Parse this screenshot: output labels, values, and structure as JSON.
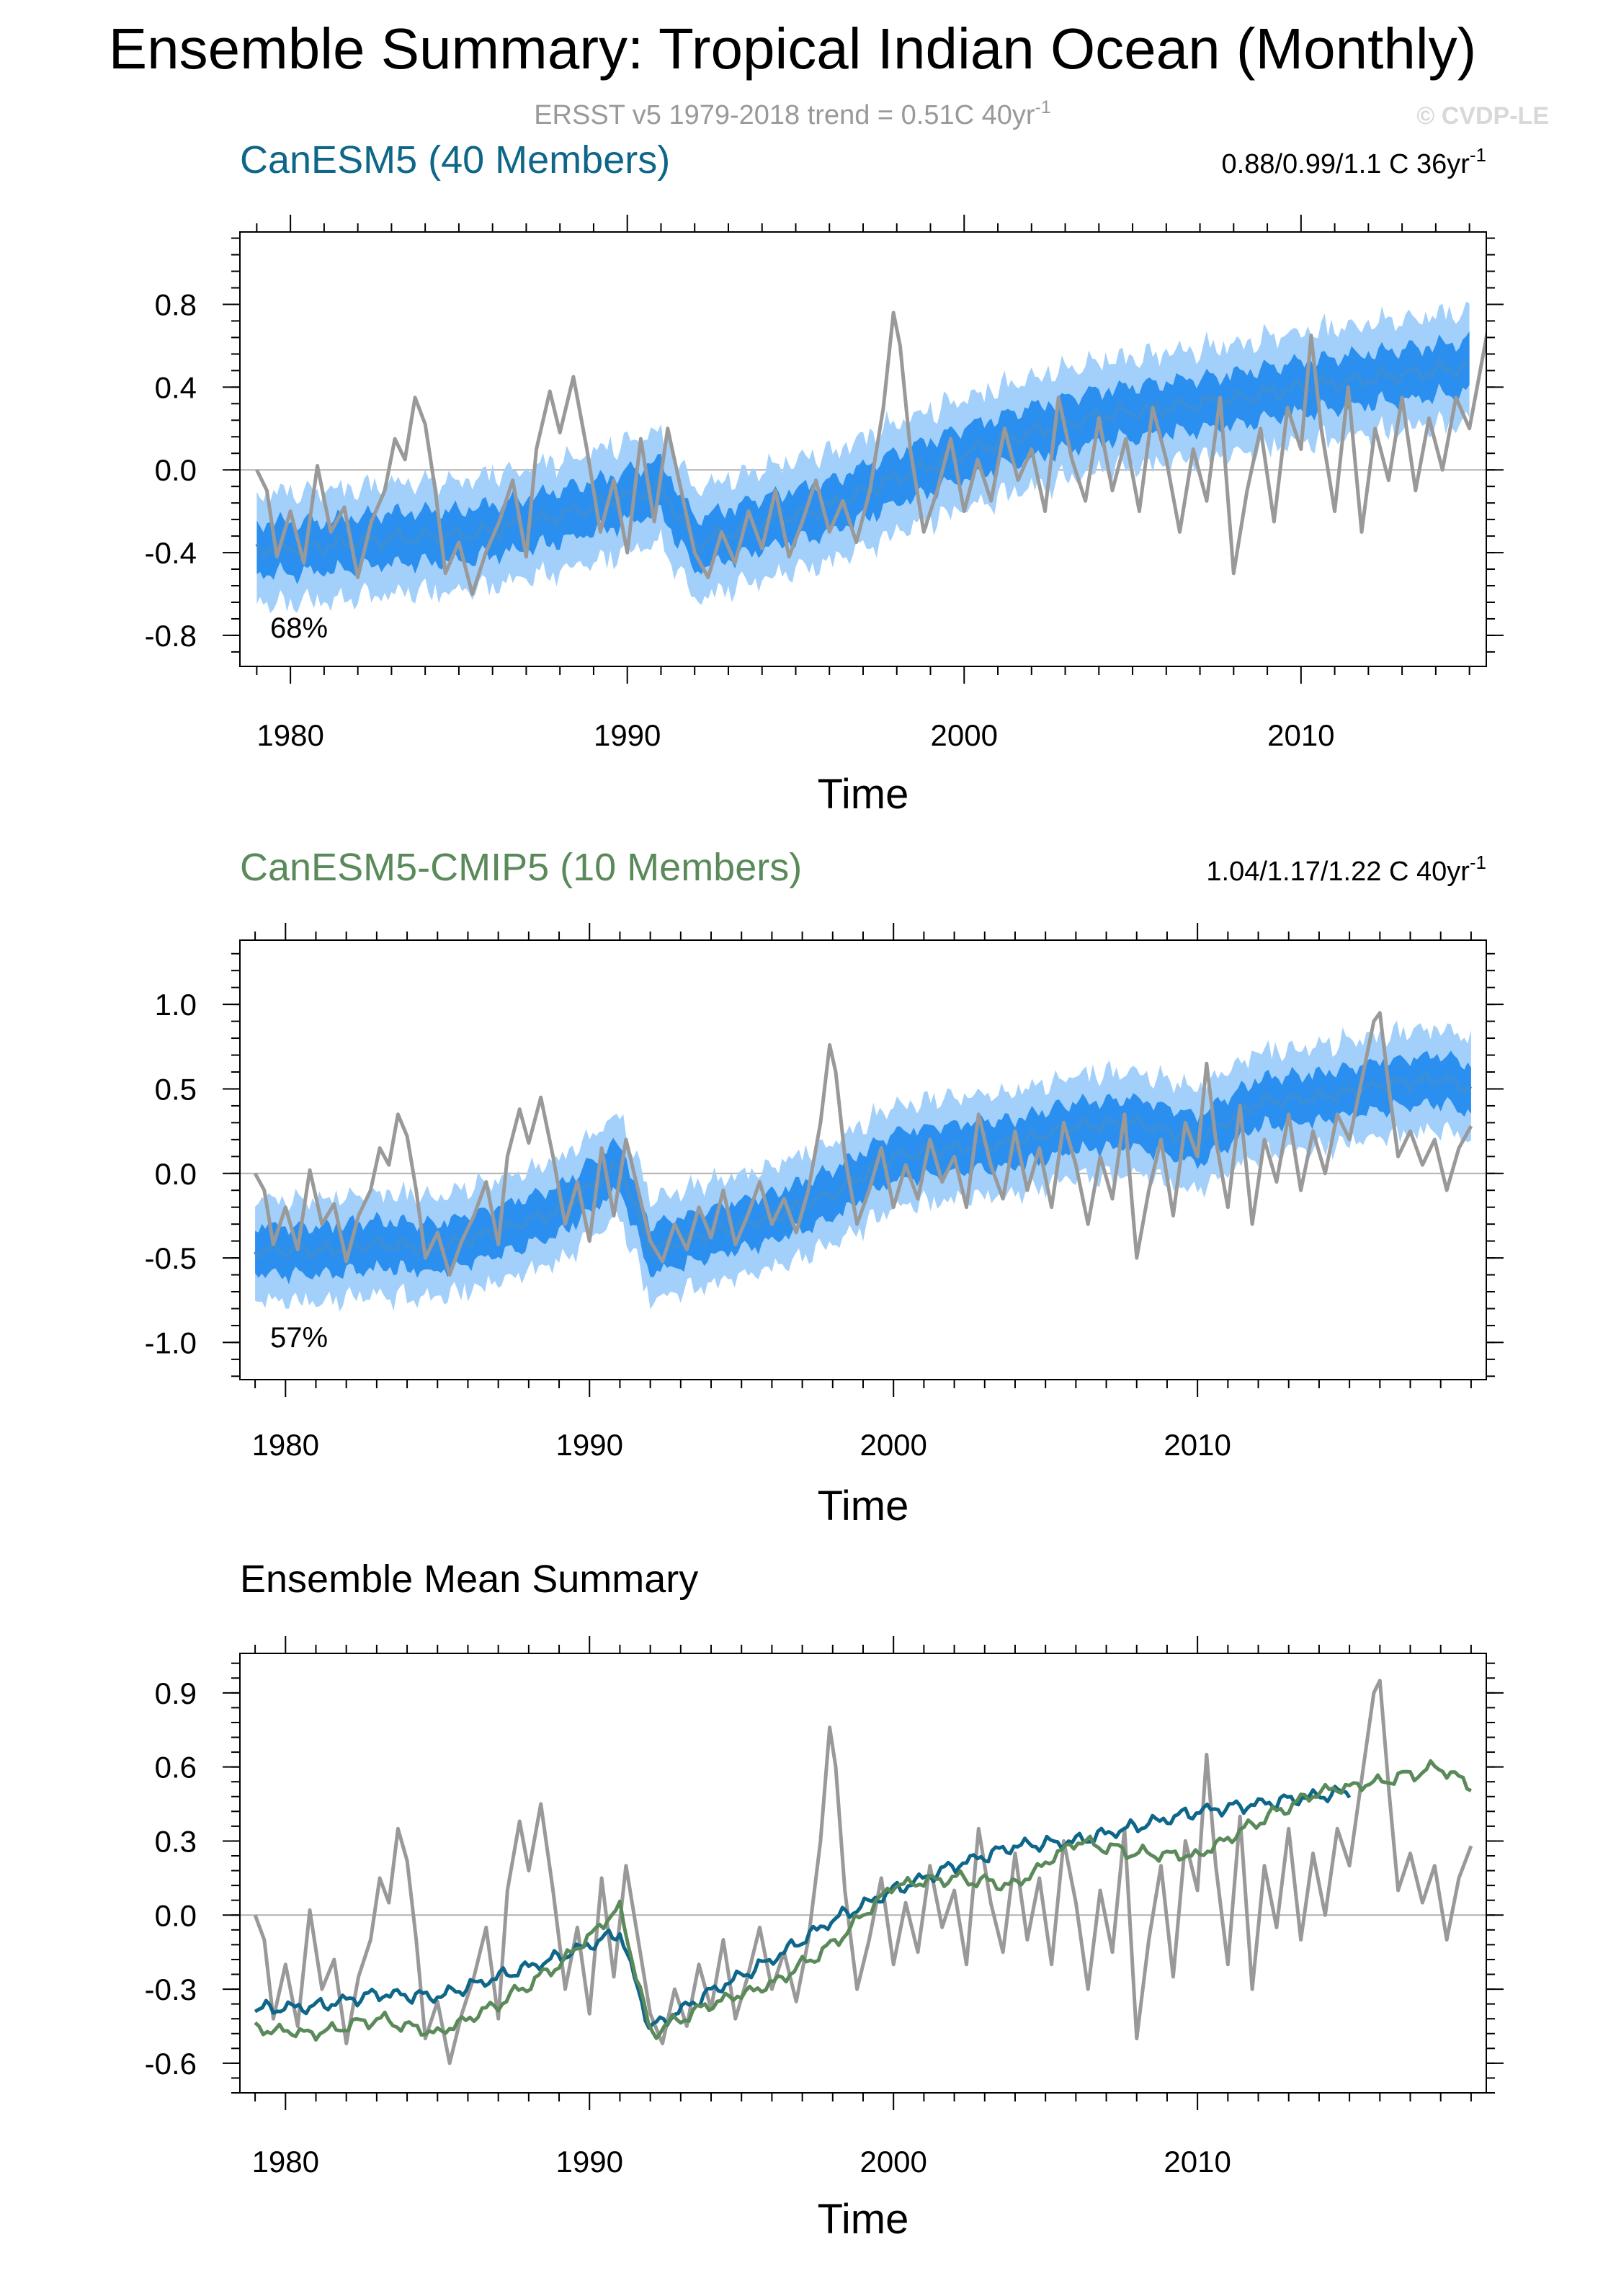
{
  "title": "Ensemble Summary: Tropical Indian Ocean (Monthly)",
  "obs": {
    "subtitle_prefix": "ERSST v5 1979-2018 trend = 0.51C 40yr",
    "subtitle_sup": "-1",
    "color": "#999999"
  },
  "copyright": "© CVDP-LE",
  "xlabel": "Time",
  "colors": {
    "inner_band": "#2b8ff0",
    "outer_band": "#a3d0fa",
    "band_mean": "#3a8fd8",
    "canesm5_mean": "#0e6688",
    "cmip5_mean": "#5a8a5a",
    "axis": "#000000",
    "zero_line": "#b0b0b0"
  },
  "chart_data": [
    {
      "type": "line",
      "title": "CanESM5 (40 Members)",
      "title_color": "#0e6688",
      "trend_label": "0.88/0.99/1.1 C 36yr",
      "trend_sup": "-1",
      "percent_label": "68%",
      "xlabel": "Time",
      "xlim": [
        1978.5,
        2015.5
      ],
      "ylim": [
        -0.95,
        1.15
      ],
      "yticks": [
        -0.8,
        -0.4,
        0.0,
        0.4,
        0.8
      ],
      "ytick_labels": [
        "-0.8",
        "-0.4",
        "0.0",
        "0.4",
        "0.8"
      ],
      "xticks": [
        1980,
        1990,
        2000,
        2010
      ],
      "xtick_labels": [
        "1980",
        "1990",
        "2000",
        "2010"
      ],
      "member_years": [
        1979,
        2015
      ],
      "ensemble_mean": {
        "x": [
          1979,
          1981,
          1983,
          1985,
          1987,
          1989,
          1991,
          1992,
          1994,
          1996,
          1998,
          2000,
          2002,
          2004,
          2006,
          2008,
          2010,
          2012,
          2015
        ],
        "y": [
          -0.38,
          -0.37,
          -0.33,
          -0.32,
          -0.26,
          -0.18,
          -0.08,
          -0.36,
          -0.26,
          -0.18,
          -0.04,
          0.08,
          0.18,
          0.26,
          0.3,
          0.34,
          0.4,
          0.44,
          0.5
        ]
      },
      "inner_spread": 0.14,
      "outer_spread": 0.3,
      "series": [
        {
          "name": "ERSST v5",
          "values": "obs"
        }
      ]
    },
    {
      "type": "line",
      "title": "CanESM5-CMIP5 (10 Members)",
      "title_color": "#5a8a5a",
      "trend_label": "1.04/1.17/1.22 C 40yr",
      "trend_sup": "-1",
      "percent_label": "57%",
      "xlabel": "Time",
      "xlim": [
        1978.5,
        2019.5
      ],
      "ylim": [
        -1.22,
        1.38
      ],
      "yticks": [
        -1.0,
        -0.5,
        0.0,
        0.5,
        1.0
      ],
      "ytick_labels": [
        "-1.0",
        "-0.5",
        "0.0",
        "0.5",
        "1.0"
      ],
      "xticks": [
        1980,
        1990,
        2000,
        2010
      ],
      "xtick_labels": [
        "1980",
        "1990",
        "2000",
        "2010"
      ],
      "member_years": [
        1979,
        2019
      ],
      "ensemble_mean": {
        "x": [
          1979,
          1981,
          1983,
          1985,
          1987,
          1989,
          1991,
          1992,
          1994,
          1996,
          1998,
          2000,
          2002,
          2004,
          2006,
          2008,
          2010,
          2012,
          2014,
          2016,
          2018,
          2019
        ],
        "y": [
          -0.45,
          -0.46,
          -0.42,
          -0.44,
          -0.34,
          -0.22,
          0.05,
          -0.45,
          -0.35,
          -0.26,
          -0.12,
          0.1,
          0.15,
          0.18,
          0.28,
          0.3,
          0.2,
          0.42,
          0.45,
          0.52,
          0.56,
          0.5
        ]
      },
      "inner_spread": 0.16,
      "outer_spread": 0.34,
      "series": [
        {
          "name": "ERSST v5",
          "values": "obs"
        }
      ]
    },
    {
      "type": "line",
      "title": "Ensemble Mean Summary",
      "title_color": "#000000",
      "xlabel": "Time",
      "xlim": [
        1978.5,
        2019.5
      ],
      "ylim": [
        -0.72,
        1.06
      ],
      "yticks": [
        -0.6,
        -0.3,
        0.0,
        0.3,
        0.6,
        0.9
      ],
      "ytick_labels": [
        "-0.6",
        "-0.3",
        "0.0",
        "0.3",
        "0.6",
        "0.9"
      ],
      "xticks": [
        1980,
        1990,
        2000,
        2010
      ],
      "xtick_labels": [
        "1980",
        "1990",
        "2000",
        "2010"
      ],
      "series": [
        {
          "name": "ERSST v5",
          "values": "obs"
        },
        {
          "name": "CanESM5 (40 Members)",
          "x": [
            1979,
            1981,
            1983,
            1985,
            1987,
            1989,
            1991,
            1992,
            1994,
            1996,
            1998,
            2000,
            2002,
            2004,
            2006,
            2008,
            2010,
            2012,
            2015
          ],
          "y": [
            -0.38,
            -0.37,
            -0.32,
            -0.33,
            -0.25,
            -0.17,
            -0.07,
            -0.46,
            -0.31,
            -0.18,
            -0.02,
            0.1,
            0.2,
            0.28,
            0.3,
            0.36,
            0.42,
            0.45,
            0.5
          ]
        },
        {
          "name": "CanESM5-CMIP5 (10 Members)",
          "x": [
            1979,
            1981,
            1983,
            1985,
            1987,
            1989,
            1991,
            1992,
            1994,
            1996,
            1998,
            2000,
            2002,
            2004,
            2006,
            2008,
            2010,
            2012,
            2014,
            2016,
            2018,
            2019
          ],
          "y": [
            -0.46,
            -0.48,
            -0.42,
            -0.48,
            -0.36,
            -0.2,
            0.03,
            -0.48,
            -0.36,
            -0.28,
            -0.12,
            0.12,
            0.15,
            0.12,
            0.3,
            0.25,
            0.24,
            0.38,
            0.5,
            0.54,
            0.6,
            0.52
          ]
        }
      ]
    }
  ],
  "obs_series": {
    "name": "ERSST v5",
    "x": [
      1979.0,
      1979.3,
      1979.6,
      1980.0,
      1980.4,
      1980.8,
      1981.2,
      1981.6,
      1982.0,
      1982.4,
      1982.8,
      1983.1,
      1983.4,
      1983.7,
      1984.0,
      1984.3,
      1984.6,
      1985.0,
      1985.4,
      1985.8,
      1986.2,
      1986.6,
      1987.0,
      1987.3,
      1987.7,
      1988.0,
      1988.4,
      1988.8,
      1989.2,
      1989.6,
      1990.0,
      1990.4,
      1990.8,
      1991.2,
      1991.6,
      1992.0,
      1992.4,
      1992.8,
      1993.2,
      1993.6,
      1994.0,
      1994.4,
      1994.8,
      1995.2,
      1995.6,
      1996.0,
      1996.4,
      1996.8,
      1997.2,
      1997.6,
      1997.9,
      1998.1,
      1998.4,
      1998.8,
      1999.2,
      1999.6,
      2000.0,
      2000.4,
      2000.8,
      2001.2,
      2001.6,
      2002.0,
      2002.4,
      2002.8,
      2003.2,
      2003.6,
      2004.0,
      2004.4,
      2004.8,
      2005.2,
      2005.6,
      2006.0,
      2006.4,
      2006.8,
      2007.2,
      2007.6,
      2008.0,
      2008.4,
      2008.8,
      2009.2,
      2009.6,
      2010.0,
      2010.3,
      2010.6,
      2011.0,
      2011.4,
      2011.8,
      2012.2,
      2012.6,
      2013.0,
      2013.4,
      2013.8,
      2014.2,
      2014.6,
      2015.0,
      2015.4,
      2015.8,
      2016.0,
      2016.3,
      2016.6,
      2017.0,
      2017.4,
      2017.8,
      2018.2,
      2018.6,
      2019.0
    ],
    "y": [
      0.0,
      -0.1,
      -0.42,
      -0.2,
      -0.45,
      0.02,
      -0.3,
      -0.18,
      -0.52,
      -0.25,
      -0.1,
      0.15,
      0.05,
      0.35,
      0.22,
      -0.1,
      -0.5,
      -0.35,
      -0.6,
      -0.4,
      -0.25,
      -0.05,
      -0.42,
      0.1,
      0.38,
      0.18,
      0.45,
      0.1,
      -0.3,
      -0.05,
      -0.4,
      0.15,
      -0.25,
      0.2,
      -0.1,
      -0.4,
      -0.52,
      -0.3,
      -0.45,
      -0.2,
      -0.38,
      -0.1,
      -0.42,
      -0.25,
      -0.05,
      -0.3,
      -0.15,
      -0.35,
      -0.1,
      0.3,
      0.76,
      0.6,
      0.1,
      -0.3,
      -0.1,
      0.15,
      -0.2,
      0.05,
      -0.15,
      0.2,
      -0.05,
      0.1,
      -0.2,
      0.35,
      0.05,
      -0.15,
      0.25,
      -0.1,
      0.15,
      -0.2,
      0.3,
      0.05,
      -0.3,
      0.1,
      -0.15,
      0.35,
      -0.5,
      -0.1,
      0.2,
      -0.25,
      0.3,
      0.1,
      0.65,
      0.2,
      -0.2,
      0.4,
      -0.3,
      0.2,
      -0.05,
      0.35,
      -0.1,
      0.25,
      0.0,
      0.35,
      0.2,
      0.55,
      0.9,
      0.95,
      0.5,
      0.1,
      0.25,
      0.05,
      0.2,
      -0.1,
      0.15,
      0.28
    ]
  }
}
